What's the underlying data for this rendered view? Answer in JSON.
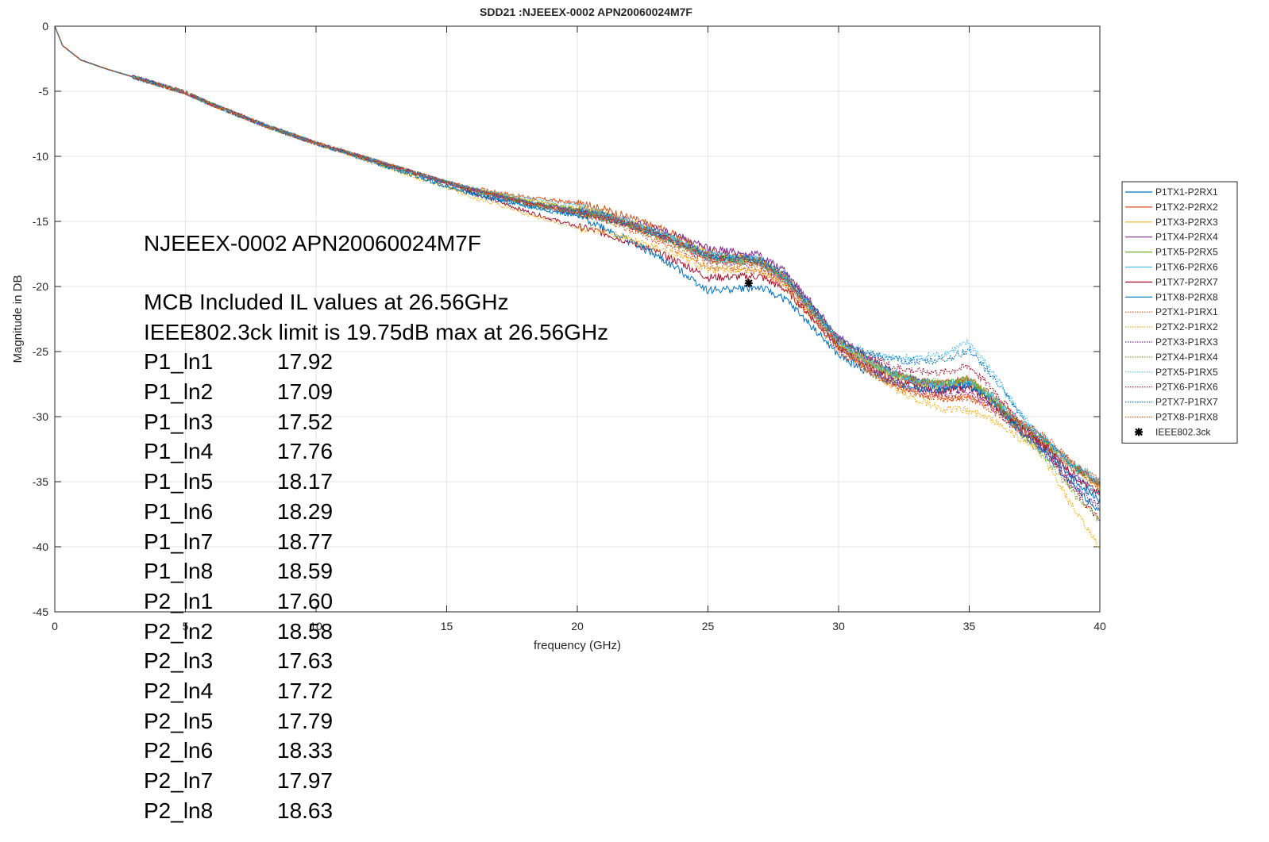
{
  "chart_data": {
    "type": "line",
    "title": "SDD21 :NJEEEX-0002 APN20060024M7F",
    "xlabel": "frequency (GHz)",
    "ylabel": "Magnitude in DB",
    "xlim": [
      0,
      40
    ],
    "ylim": [
      -45,
      0
    ],
    "xticks": [
      "0",
      "5",
      "10",
      "15",
      "20",
      "25",
      "30",
      "35",
      "40"
    ],
    "yticks": [
      "0",
      "-5",
      "-10",
      "-15",
      "-20",
      "-25",
      "-30",
      "-35",
      "-40",
      "-45"
    ],
    "grid": true,
    "legend_position": "outside-right",
    "base_curve": {
      "x": [
        0,
        0.3,
        1,
        2,
        3,
        4,
        5,
        6,
        7,
        8,
        9,
        10,
        11,
        12,
        13,
        14,
        15,
        16,
        17,
        18,
        19,
        20,
        21,
        22,
        23,
        24,
        25,
        26,
        27,
        28,
        29,
        30,
        31,
        32,
        33,
        34,
        35,
        36,
        37,
        38,
        39,
        40
      ],
      "y": [
        0,
        -1.5,
        -2.6,
        -3.3,
        -3.9,
        -4.5,
        -5.1,
        -6.0,
        -6.8,
        -7.6,
        -8.3,
        -9.0,
        -9.6,
        -10.2,
        -10.8,
        -11.4,
        -12.0,
        -12.6,
        -13.1,
        -13.6,
        -14.0,
        -14.4,
        -14.8,
        -15.4,
        -16.1,
        -16.9,
        -17.9,
        -18.1,
        -18.3,
        -19.6,
        -22.0,
        -24.5,
        -25.8,
        -26.9,
        -27.5,
        -27.8,
        -27.5,
        -29.0,
        -31.0,
        -32.5,
        -34.5,
        -36.0
      ]
    },
    "series": [
      {
        "name": "P1TX1-P2RX1",
        "color": "#0072BD",
        "dash": "solid",
        "offset": [
          0,
          0,
          0,
          -0.3,
          0,
          0.3,
          0.4,
          0.2,
          -0.4,
          -1.2
        ]
      },
      {
        "name": "P1TX2-P2RX2",
        "color": "#D95319",
        "dash": "solid",
        "offset": [
          0,
          0,
          0,
          0,
          0.8,
          0.6,
          0,
          0.4,
          0.5,
          0.8
        ]
      },
      {
        "name": "P1TX3-P2RX3",
        "color": "#EDB120",
        "dash": "solid",
        "offset": [
          0,
          0,
          0,
          0,
          0.4,
          0.3,
          0.2,
          0,
          0.4,
          0.6
        ]
      },
      {
        "name": "P1TX4-P2RX4",
        "color": "#7E2F8E",
        "dash": "solid",
        "offset": [
          0,
          0,
          0,
          0,
          0.2,
          0.8,
          0.6,
          0,
          0.2,
          -0.2
        ]
      },
      {
        "name": "P1TX5-P2RX5",
        "color": "#77AC30",
        "dash": "solid",
        "offset": [
          0,
          0,
          0,
          0,
          0.3,
          0.2,
          0,
          0.3,
          0.3,
          0.8
        ]
      },
      {
        "name": "P1TX6-P2RX6",
        "color": "#4DBEEE",
        "dash": "solid",
        "offset": [
          0,
          0,
          0,
          0,
          0,
          0.4,
          0.2,
          0.2,
          0.6,
          1.0
        ]
      },
      {
        "name": "P1TX7-P2RX7",
        "color": "#A2142F",
        "dash": "solid",
        "offset": [
          0,
          0,
          0,
          0,
          -1.0,
          -1.4,
          -0.2,
          -0.3,
          0,
          0
        ]
      },
      {
        "name": "P1TX8-P2RX8",
        "color": "#0072BD",
        "dash": "solid",
        "offset": [
          0,
          0,
          0,
          -0.3,
          -0.2,
          -2.4,
          -0.8,
          0,
          -0.2,
          -0.4
        ]
      },
      {
        "name": "P2TX1-P1RX1",
        "color": "#D95319",
        "dash": "dotted",
        "offset": [
          0,
          0,
          0,
          0,
          0.1,
          -0.6,
          -0.4,
          -1.0,
          0,
          0.6
        ]
      },
      {
        "name": "P2TX2-P1RX2",
        "color": "#EDB120",
        "dash": "dotted",
        "offset": [
          0,
          0,
          0,
          -0.4,
          -1.1,
          -0.8,
          0,
          -2.0,
          -0.5,
          -4.0
        ]
      },
      {
        "name": "P2TX3-P1RX3",
        "color": "#7E2F8E",
        "dash": "dotted",
        "offset": [
          0,
          0,
          0,
          0,
          0.2,
          0,
          -0.2,
          -0.6,
          -0.3,
          -1.0
        ]
      },
      {
        "name": "P2TX4-P1RX4",
        "color": "#77AC30",
        "dash": "dotted",
        "offset": [
          0,
          0,
          0,
          0,
          0,
          0,
          0.2,
          0.4,
          -0.6,
          -2.0
        ]
      },
      {
        "name": "P2TX5-P1RX5",
        "color": "#4DBEEE",
        "dash": "dotted",
        "offset": [
          0,
          0,
          0,
          0,
          0.6,
          0,
          0.2,
          3.2,
          0.6,
          0
        ]
      },
      {
        "name": "P2TX6-P1RX6",
        "color": "#A2142F",
        "dash": "dotted",
        "offset": [
          0,
          0,
          0,
          0,
          0,
          0.2,
          0.4,
          1.4,
          0.2,
          -2.0
        ]
      },
      {
        "name": "P2TX7-P1RX7",
        "color": "#0072BD",
        "dash": "dotted",
        "offset": [
          0,
          0,
          0,
          0,
          0.2,
          0.2,
          0.4,
          2.6,
          0.6,
          0.8
        ]
      },
      {
        "name": "P2TX8-P1RX8",
        "color": "#D95319",
        "dash": "dotted",
        "offset": [
          0,
          0,
          0,
          0,
          0.1,
          0,
          -0.2,
          -1.0,
          0.8,
          1.0
        ]
      }
    ],
    "offset_x": [
      0,
      5,
      10,
      15,
      20,
      25,
      30,
      35,
      37.5,
      40
    ],
    "marker": {
      "name": "IEEE802.3ck",
      "x": 26.56,
      "y": -19.75,
      "color": "#000000"
    }
  },
  "annotation": {
    "heading": "NJEEEX-0002 APN20060024M7F",
    "line1": "MCB Included IL values at 26.56GHz",
    "line2": "IEEE802.3ck limit is 19.75dB max at 26.56GHz",
    "rows": [
      {
        "lane": "P1_ln1",
        "value": "17.92"
      },
      {
        "lane": "P1_ln2",
        "value": "17.09"
      },
      {
        "lane": "P1_ln3",
        "value": "17.52"
      },
      {
        "lane": "P1_ln4",
        "value": "17.76"
      },
      {
        "lane": "P1_ln5",
        "value": "18.17"
      },
      {
        "lane": "P1_ln6",
        "value": "18.29"
      },
      {
        "lane": "P1_ln7",
        "value": "18.77"
      },
      {
        "lane": "P1_ln8",
        "value": "18.59"
      },
      {
        "lane": "P2_ln1",
        "value": "17.60"
      },
      {
        "lane": "P2_ln2",
        "value": "18.58"
      },
      {
        "lane": "P2_ln3",
        "value": "17.63"
      },
      {
        "lane": "P2_ln4",
        "value": "17.72"
      },
      {
        "lane": "P2_ln5",
        "value": "17.79"
      },
      {
        "lane": "P2_ln6",
        "value": "18.33"
      },
      {
        "lane": "P2_ln7",
        "value": "17.97"
      },
      {
        "lane": "P2_ln8",
        "value": "18.63"
      }
    ]
  }
}
